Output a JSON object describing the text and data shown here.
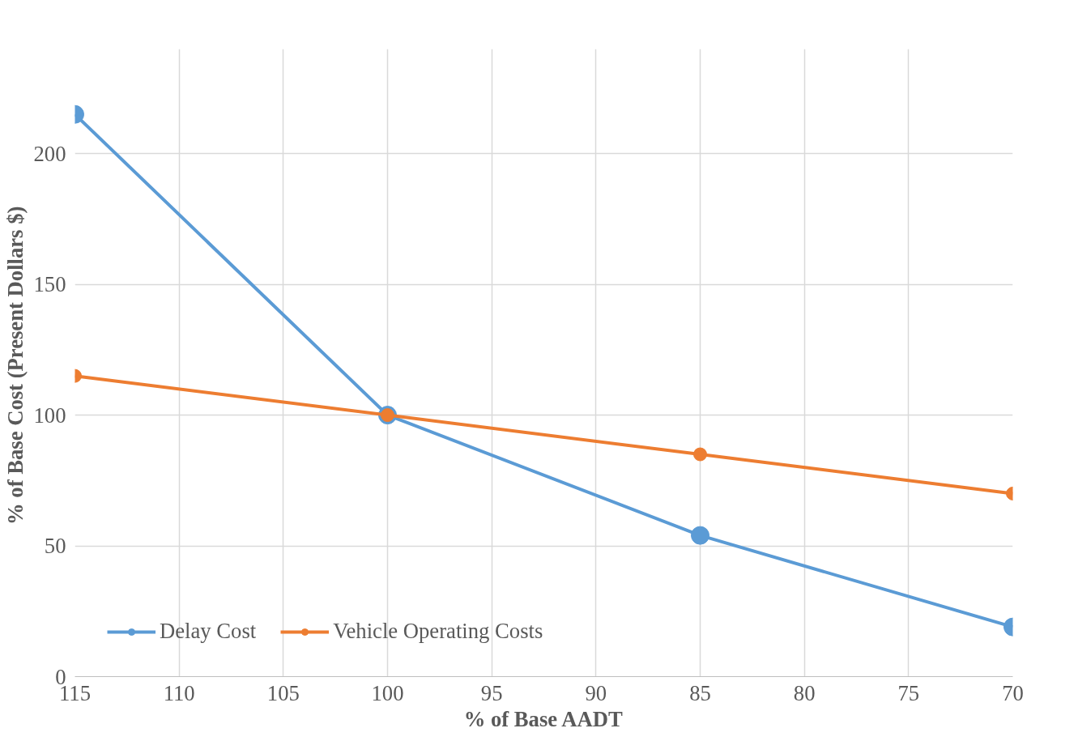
{
  "chart_data": {
    "type": "line",
    "xlabel": "% of Base AADT",
    "ylabel": "% of Base Cost  (Present Dollars $)",
    "x": [
      115,
      100,
      85,
      70
    ],
    "series": [
      {
        "name": "Delay Cost",
        "color": "#5b9bd5",
        "values": [
          215,
          100,
          54,
          19
        ]
      },
      {
        "name": "Vehicle Operating Costs",
        "color": "#ed7d31",
        "values": [
          115,
          100,
          85,
          70
        ]
      }
    ],
    "xlim": [
      115,
      70
    ],
    "xticks": [
      115,
      110,
      105,
      100,
      95,
      90,
      85,
      80,
      75,
      70
    ],
    "ylim": [
      0,
      240
    ],
    "yticks": [
      0,
      50,
      100,
      150,
      200
    ],
    "grid": true,
    "legend": "bottom left",
    "marker": "circle",
    "line_style": "solid"
  }
}
